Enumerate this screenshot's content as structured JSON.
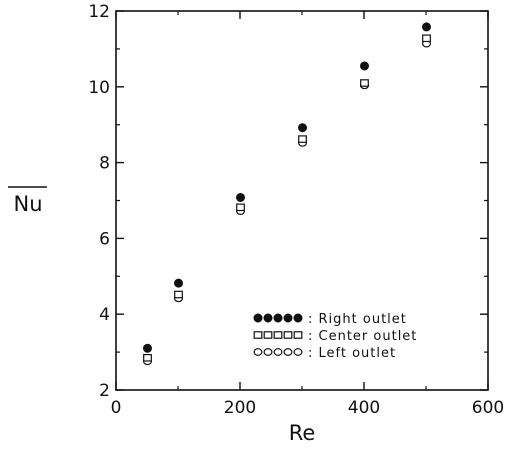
{
  "chart_data": {
    "type": "scatter",
    "xlabel": "Re",
    "ylabel": "Nu",
    "ylabel_overline": true,
    "xlim": [
      0,
      600
    ],
    "ylim": [
      2,
      12
    ],
    "x_ticks": [
      "0",
      "200",
      "400",
      "600"
    ],
    "y_ticks": [
      "2",
      "4",
      "6",
      "8",
      "10",
      "12"
    ],
    "grid": false,
    "legend_position": "lower-right",
    "series": [
      {
        "name": "Right outlet",
        "legend_symbols": "●●●●●",
        "marker": "filled-circle",
        "x": [
          50,
          100,
          200,
          300,
          400,
          500
        ],
        "y": [
          3.1,
          4.82,
          7.08,
          8.92,
          10.55,
          11.58
        ]
      },
      {
        "name": "Center outlet",
        "legend_symbols": "□□□□□",
        "marker": "open-square",
        "x": [
          50,
          100,
          200,
          300,
          400,
          500
        ],
        "y": [
          2.85,
          4.52,
          6.82,
          8.62,
          10.1,
          11.28
        ]
      },
      {
        "name": "Left outlet",
        "legend_symbols": "○○○○○",
        "marker": "open-circle",
        "x": [
          50,
          100,
          200,
          300,
          400,
          500
        ],
        "y": [
          2.76,
          4.42,
          6.72,
          8.52,
          10.04,
          11.14
        ]
      }
    ]
  }
}
